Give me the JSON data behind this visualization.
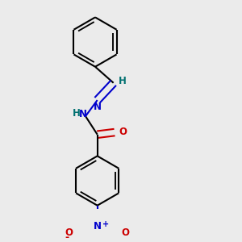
{
  "bg_color": "#ebebeb",
  "bond_color": "#000000",
  "N_color": "#0000cc",
  "O_color": "#cc0000",
  "H_color": "#007070",
  "line_width": 1.5,
  "figsize": [
    3.0,
    3.0
  ],
  "dpi": 100,
  "ring_r": 0.115,
  "xlim": [
    0.05,
    0.95
  ],
  "ylim": [
    0.02,
    0.98
  ]
}
